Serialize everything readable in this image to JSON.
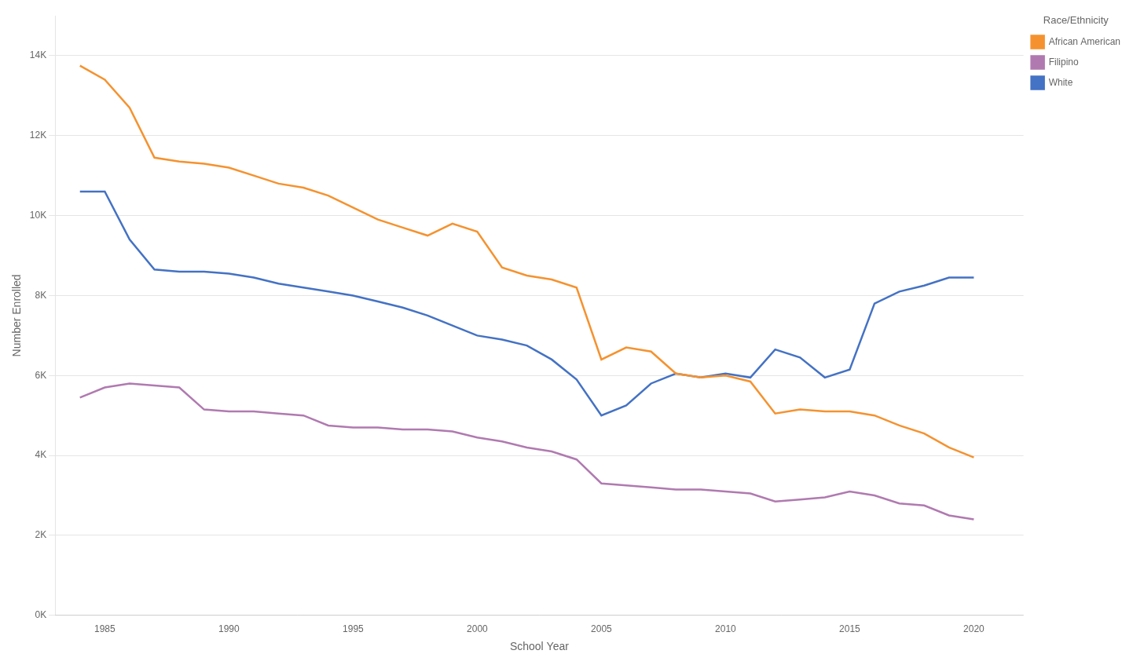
{
  "chart_data": {
    "type": "line",
    "xlabel": "School Year",
    "ylabel": "Number Enrolled",
    "legend_title": "Race/Ethnicity",
    "legend": "right",
    "grid": "y",
    "xlim": [
      1983,
      2022
    ],
    "xticks": [
      1985,
      1990,
      1995,
      2000,
      2005,
      2010,
      2015,
      2020
    ],
    "ylim": [
      0,
      15000
    ],
    "yticks": [
      {
        "value": 0,
        "label": "0K"
      },
      {
        "value": 2000,
        "label": "2K"
      },
      {
        "value": 4000,
        "label": "4K"
      },
      {
        "value": 6000,
        "label": "6K"
      },
      {
        "value": 8000,
        "label": "8K"
      },
      {
        "value": 10000,
        "label": "10K"
      },
      {
        "value": 12000,
        "label": "12K"
      },
      {
        "value": 14000,
        "label": "14K"
      }
    ],
    "x": [
      1984,
      1985,
      1986,
      1987,
      1988,
      1989,
      1990,
      1991,
      1992,
      1993,
      1994,
      1995,
      1996,
      1997,
      1998,
      1999,
      2000,
      2001,
      2002,
      2003,
      2004,
      2005,
      2006,
      2007,
      2008,
      2009,
      2010,
      2011,
      2012,
      2013,
      2014,
      2015,
      2016,
      2017,
      2018,
      2019,
      2020
    ],
    "series": [
      {
        "name": "African American",
        "color": "#f5922f",
        "values": [
          13750,
          13400,
          12700,
          11450,
          11350,
          11300,
          11200,
          11000,
          10800,
          10700,
          10500,
          10200,
          9900,
          9700,
          9500,
          9800,
          9600,
          8700,
          8500,
          8400,
          8200,
          6400,
          6700,
          6600,
          6050,
          5950,
          6000,
          5850,
          5050,
          5150,
          5100,
          5100,
          5000,
          4750,
          4550,
          4200,
          3950
        ]
      },
      {
        "name": "Filipino",
        "color": "#b07ab0",
        "values": [
          5450,
          5700,
          5800,
          5750,
          5700,
          5150,
          5100,
          5100,
          5050,
          5000,
          4750,
          4700,
          4700,
          4650,
          4650,
          4600,
          4450,
          4350,
          4200,
          4100,
          3900,
          3300,
          3250,
          3200,
          3150,
          3150,
          3100,
          3050,
          2850,
          2900,
          2950,
          3100,
          3000,
          2800,
          2750,
          2500,
          2400
        ]
      },
      {
        "name": "White",
        "color": "#4472c4",
        "values": [
          10600,
          10600,
          9400,
          8650,
          8600,
          8600,
          8550,
          8450,
          8300,
          8200,
          8100,
          8000,
          7850,
          7700,
          7500,
          7250,
          7000,
          6900,
          6750,
          6400,
          5900,
          5000,
          5250,
          5800,
          6050,
          5950,
          6050,
          5950,
          6650,
          6450,
          5950,
          6150,
          7800,
          8100,
          8250,
          8450,
          8450
        ]
      }
    ]
  }
}
